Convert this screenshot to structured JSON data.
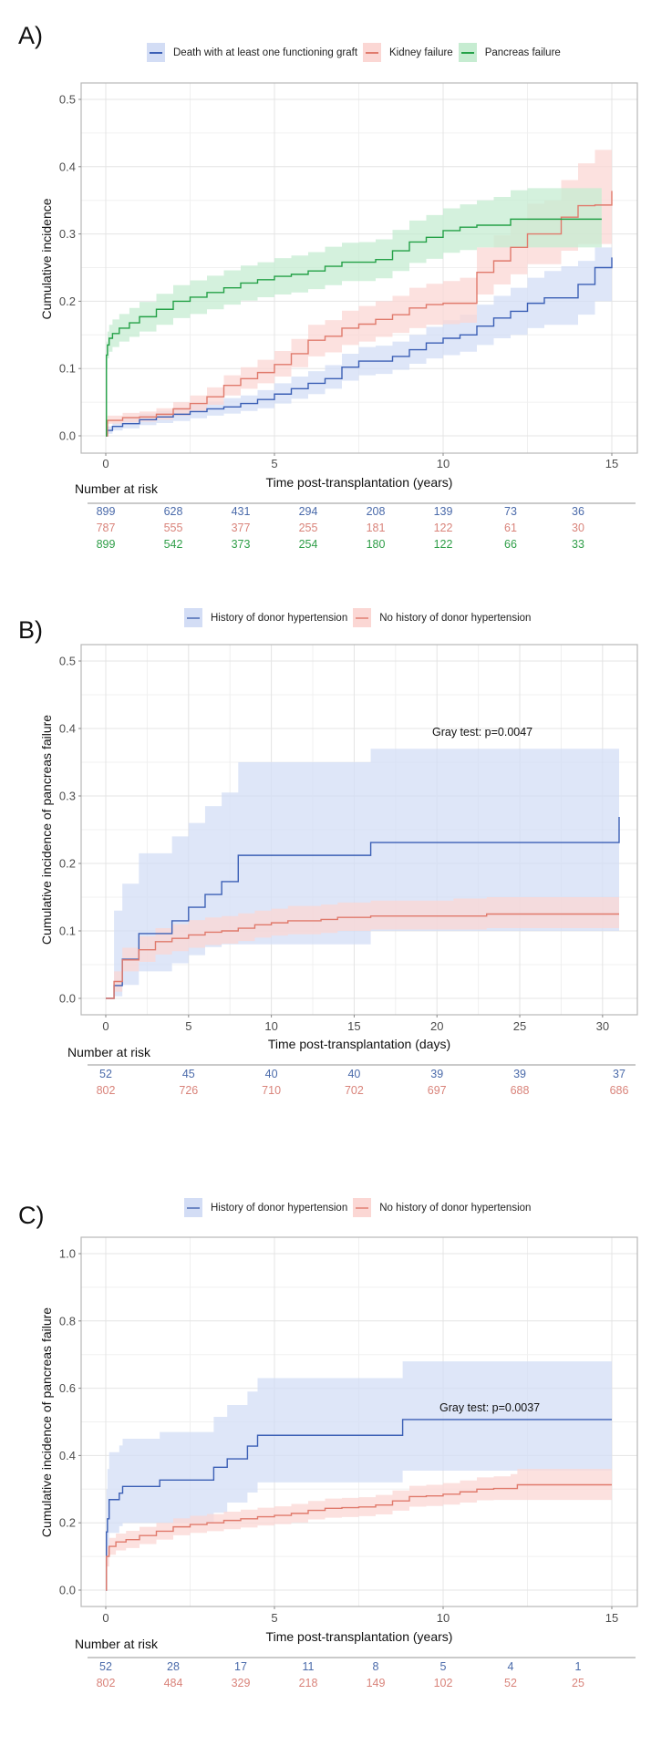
{
  "figure": {
    "panels": [
      {
        "label": "A)"
      },
      {
        "label": "B)"
      },
      {
        "label": "C)"
      }
    ]
  },
  "colors": {
    "blue_line": "#3b5fb5",
    "blue_fill": "#d3ddf5",
    "red_line": "#e07a6c",
    "red_fill": "#fbd7d4",
    "green_line": "#24a147",
    "green_fill": "#c6ecd1",
    "blue_text": "#4a6aaa",
    "red_text": "#d9837a",
    "green_text": "#2f9e48"
  },
  "chart_data": [
    {
      "type": "line",
      "subtype": "cumulative-incidence-step",
      "panel": "A)",
      "title": "",
      "xlabel": "Time post-transplantation (years)",
      "ylabel": "Cumulative incidence",
      "xlim": [
        0,
        15
      ],
      "ylim": [
        0,
        0.5
      ],
      "xticks": [
        0,
        5,
        10,
        15
      ],
      "yticks": [
        "0.0",
        "0.1",
        "0.2",
        "0.3",
        "0.4",
        "0.5"
      ],
      "grid": true,
      "legend_position": "top",
      "series": [
        {
          "name": "Death with at least one functioning graft",
          "color": "blue",
          "x": [
            0,
            0.05,
            0.2,
            0.5,
            1,
            1.5,
            2,
            2.5,
            3,
            3.5,
            4,
            4.5,
            5,
            5.5,
            6,
            6.5,
            7,
            7.5,
            8,
            8.5,
            9,
            9.5,
            10,
            10.5,
            11,
            11.5,
            12,
            12.5,
            13,
            13.5,
            14,
            14.5,
            15
          ],
          "y": [
            0,
            0.008,
            0.014,
            0.018,
            0.024,
            0.028,
            0.032,
            0.036,
            0.04,
            0.043,
            0.048,
            0.054,
            0.062,
            0.07,
            0.078,
            0.085,
            0.102,
            0.111,
            0.111,
            0.118,
            0.128,
            0.138,
            0.145,
            0.15,
            0.163,
            0.175,
            0.185,
            0.197,
            0.205,
            0.205,
            0.225,
            0.25,
            0.265
          ],
          "ci_lower": [
            0,
            0.003,
            0.008,
            0.011,
            0.016,
            0.019,
            0.022,
            0.026,
            0.03,
            0.033,
            0.037,
            0.041,
            0.048,
            0.055,
            0.062,
            0.07,
            0.082,
            0.09,
            0.092,
            0.098,
            0.107,
            0.115,
            0.12,
            0.125,
            0.135,
            0.145,
            0.15,
            0.16,
            0.165,
            0.165,
            0.18,
            0.2,
            0.2
          ],
          "ci_upper": [
            0,
            0.014,
            0.02,
            0.026,
            0.033,
            0.037,
            0.042,
            0.047,
            0.051,
            0.056,
            0.06,
            0.068,
            0.078,
            0.088,
            0.096,
            0.105,
            0.122,
            0.132,
            0.134,
            0.14,
            0.15,
            0.162,
            0.172,
            0.18,
            0.195,
            0.208,
            0.22,
            0.235,
            0.245,
            0.252,
            0.26,
            0.28,
            0.285
          ]
        },
        {
          "name": "Kidney failure",
          "color": "red",
          "x": [
            0,
            0.05,
            0.5,
            1,
            1.5,
            2,
            2.5,
            3,
            3.5,
            4,
            4.5,
            5,
            5.5,
            6,
            6.5,
            7,
            7.5,
            8,
            8.5,
            9,
            9.5,
            10,
            10.5,
            11,
            11.5,
            12,
            12.5,
            13,
            13.5,
            14,
            14.5,
            15
          ],
          "y": [
            0,
            0.023,
            0.027,
            0.028,
            0.032,
            0.04,
            0.048,
            0.058,
            0.075,
            0.085,
            0.094,
            0.106,
            0.122,
            0.142,
            0.148,
            0.16,
            0.166,
            0.173,
            0.18,
            0.19,
            0.195,
            0.197,
            0.197,
            0.243,
            0.26,
            0.28,
            0.3,
            0.3,
            0.325,
            0.342,
            0.343,
            0.364
          ],
          "ci_lower": [
            0,
            0.018,
            0.02,
            0.021,
            0.024,
            0.03,
            0.037,
            0.046,
            0.06,
            0.07,
            0.078,
            0.088,
            0.102,
            0.118,
            0.124,
            0.135,
            0.14,
            0.147,
            0.153,
            0.16,
            0.165,
            0.166,
            0.168,
            0.21,
            0.225,
            0.24,
            0.255,
            0.255,
            0.275,
            0.285,
            0.285,
            0.29
          ],
          "ci_upper": [
            0,
            0.03,
            0.034,
            0.036,
            0.041,
            0.05,
            0.06,
            0.072,
            0.09,
            0.102,
            0.113,
            0.126,
            0.144,
            0.165,
            0.172,
            0.186,
            0.193,
            0.2,
            0.208,
            0.22,
            0.226,
            0.23,
            0.235,
            0.28,
            0.298,
            0.32,
            0.345,
            0.35,
            0.38,
            0.405,
            0.425,
            0.46
          ]
        },
        {
          "name": "Pancreas failure",
          "color": "green",
          "x": [
            0,
            0.02,
            0.05,
            0.1,
            0.2,
            0.4,
            0.7,
            1,
            1.5,
            2,
            2.5,
            3,
            3.5,
            4,
            4.5,
            5,
            5.5,
            6,
            6.5,
            7,
            7.5,
            8,
            8.5,
            9,
            9.5,
            10,
            10.5,
            11,
            11.5,
            12,
            12.5,
            13,
            13.5,
            14,
            14.7
          ],
          "y": [
            0,
            0.12,
            0.135,
            0.145,
            0.152,
            0.16,
            0.168,
            0.177,
            0.188,
            0.2,
            0.206,
            0.213,
            0.22,
            0.227,
            0.232,
            0.237,
            0.24,
            0.245,
            0.252,
            0.258,
            0.258,
            0.262,
            0.275,
            0.288,
            0.295,
            0.305,
            0.31,
            0.313,
            0.313,
            0.322,
            0.322,
            0.322,
            0.322,
            0.322,
            0.322
          ],
          "ci_lower": [
            0,
            0.1,
            0.115,
            0.125,
            0.132,
            0.14,
            0.147,
            0.155,
            0.165,
            0.175,
            0.181,
            0.188,
            0.195,
            0.201,
            0.206,
            0.21,
            0.213,
            0.218,
            0.224,
            0.23,
            0.23,
            0.234,
            0.245,
            0.257,
            0.263,
            0.272,
            0.276,
            0.28,
            0.28,
            0.28,
            0.28,
            0.28,
            0.28,
            0.28,
            0.28
          ],
          "ci_upper": [
            0,
            0.14,
            0.155,
            0.165,
            0.173,
            0.181,
            0.19,
            0.199,
            0.211,
            0.224,
            0.231,
            0.238,
            0.246,
            0.253,
            0.258,
            0.264,
            0.268,
            0.273,
            0.281,
            0.287,
            0.288,
            0.292,
            0.306,
            0.32,
            0.328,
            0.338,
            0.344,
            0.35,
            0.355,
            0.365,
            0.368,
            0.368,
            0.368,
            0.368,
            0.368
          ]
        }
      ],
      "number_at_risk": {
        "title": "Number at risk",
        "times": [
          0,
          2,
          4,
          6,
          8,
          10,
          12,
          14
        ],
        "rows": [
          {
            "color": "blue",
            "values": [
              "899",
              "628",
              "431",
              "294",
              "208",
              "139",
              "73",
              "36"
            ]
          },
          {
            "color": "red",
            "values": [
              "787",
              "555",
              "377",
              "255",
              "181",
              "122",
              "61",
              "30"
            ]
          },
          {
            "color": "green",
            "values": [
              "899",
              "542",
              "373",
              "254",
              "180",
              "122",
              "66",
              "33"
            ]
          }
        ]
      }
    },
    {
      "type": "line",
      "subtype": "cumulative-incidence-step",
      "panel": "B)",
      "title": "",
      "xlabel": "Time post-transplantation (days)",
      "ylabel": "Cumulative incidence of pancreas failure",
      "xlim": [
        0,
        31
      ],
      "ylim": [
        0,
        0.5
      ],
      "xticks": [
        0,
        5,
        10,
        15,
        20,
        25,
        30
      ],
      "yticks": [
        "0.0",
        "0.1",
        "0.2",
        "0.3",
        "0.4",
        "0.5"
      ],
      "grid": true,
      "legend_position": "top",
      "annotation": "Gray test: p=0.0047",
      "series": [
        {
          "name": "History of donor hypertension",
          "color": "blue",
          "x": [
            0,
            0.5,
            1,
            2,
            4,
            5,
            6,
            7,
            8,
            16,
            31,
            31
          ],
          "y": [
            0,
            0.019,
            0.058,
            0.096,
            0.115,
            0.135,
            0.154,
            0.173,
            0.212,
            0.231,
            0.231,
            0.269
          ],
          "ci_lower": [
            0,
            0.003,
            0.02,
            0.04,
            0.052,
            0.064,
            0.076,
            0.08,
            0.08,
            0.1,
            0.17,
            0.17
          ],
          "ci_upper": [
            0,
            0.13,
            0.17,
            0.215,
            0.24,
            0.26,
            0.285,
            0.305,
            0.35,
            0.37,
            0.41,
            0.41
          ]
        },
        {
          "name": "No history of donor hypertension",
          "color": "red",
          "x": [
            0,
            0.5,
            1,
            2,
            3,
            4,
            5,
            6,
            7,
            8,
            9,
            10,
            11,
            13,
            14,
            16,
            21,
            23,
            31
          ],
          "y": [
            0,
            0.025,
            0.057,
            0.072,
            0.084,
            0.089,
            0.094,
            0.098,
            0.1,
            0.104,
            0.109,
            0.112,
            0.115,
            0.117,
            0.12,
            0.122,
            0.122,
            0.125,
            0.125
          ],
          "ci_lower": [
            0,
            0.01,
            0.04,
            0.054,
            0.065,
            0.07,
            0.075,
            0.079,
            0.081,
            0.085,
            0.09,
            0.093,
            0.095,
            0.097,
            0.1,
            0.102,
            0.102,
            0.104,
            0.104
          ],
          "ci_upper": [
            0,
            0.04,
            0.075,
            0.092,
            0.104,
            0.11,
            0.116,
            0.12,
            0.122,
            0.126,
            0.13,
            0.133,
            0.137,
            0.139,
            0.142,
            0.145,
            0.148,
            0.15,
            0.15
          ]
        }
      ],
      "number_at_risk": {
        "title": "Number at risk",
        "times": [
          0,
          5,
          10,
          15,
          20,
          25,
          31
        ],
        "rows": [
          {
            "color": "blue",
            "values": [
              "52",
              "45",
              "40",
              "40",
              "39",
              "39",
              "37"
            ]
          },
          {
            "color": "red",
            "values": [
              "802",
              "726",
              "710",
              "702",
              "697",
              "688",
              "686"
            ]
          }
        ]
      }
    },
    {
      "type": "line",
      "subtype": "cumulative-incidence-step",
      "panel": "C)",
      "title": "",
      "xlabel": "Time post-transplantation (years)",
      "ylabel": "Cumulative incidence of pancreas failure",
      "xlim": [
        0,
        15
      ],
      "ylim": [
        0,
        1.0
      ],
      "xticks": [
        0,
        5,
        10,
        15
      ],
      "yticks": [
        "0.0",
        "0.2",
        "0.4",
        "0.6",
        "0.8",
        "1.0"
      ],
      "grid": true,
      "legend_position": "top",
      "annotation": "Gray test: p=0.0037",
      "series": [
        {
          "name": "History of donor hypertension",
          "color": "blue",
          "x": [
            0,
            0.02,
            0.05,
            0.1,
            0.4,
            0.5,
            1.6,
            3.2,
            3.6,
            4.2,
            4.5,
            8.8,
            15
          ],
          "y": [
            0,
            0.173,
            0.212,
            0.269,
            0.288,
            0.308,
            0.327,
            0.365,
            0.39,
            0.428,
            0.46,
            0.507,
            0.507
          ],
          "ci_lower": [
            0,
            0.1,
            0.13,
            0.17,
            0.19,
            0.2,
            0.2,
            0.23,
            0.26,
            0.29,
            0.32,
            0.355,
            0.355
          ],
          "ci_upper": [
            0,
            0.3,
            0.36,
            0.41,
            0.43,
            0.45,
            0.47,
            0.515,
            0.55,
            0.59,
            0.63,
            0.68,
            0.68
          ]
        },
        {
          "name": "No history of donor hypertension",
          "color": "red",
          "x": [
            0,
            0.02,
            0.1,
            0.3,
            0.6,
            1,
            1.5,
            2,
            2.5,
            3,
            3.5,
            4,
            4.5,
            5,
            5.5,
            6,
            6.5,
            7,
            7.5,
            8,
            8.5,
            9,
            9.5,
            10,
            10.5,
            11,
            11.5,
            12,
            12.2,
            15
          ],
          "y": [
            0,
            0.1,
            0.13,
            0.143,
            0.15,
            0.162,
            0.175,
            0.188,
            0.195,
            0.2,
            0.207,
            0.212,
            0.218,
            0.222,
            0.228,
            0.237,
            0.243,
            0.245,
            0.247,
            0.253,
            0.265,
            0.278,
            0.28,
            0.285,
            0.292,
            0.3,
            0.302,
            0.302,
            0.313,
            0.313
          ],
          "ci_lower": [
            0,
            0.07,
            0.105,
            0.118,
            0.125,
            0.137,
            0.15,
            0.163,
            0.17,
            0.175,
            0.181,
            0.186,
            0.192,
            0.196,
            0.201,
            0.21,
            0.215,
            0.217,
            0.22,
            0.225,
            0.236,
            0.248,
            0.25,
            0.254,
            0.26,
            0.267,
            0.268,
            0.268,
            0.268,
            0.268
          ],
          "ci_upper": [
            0,
            0.13,
            0.155,
            0.168,
            0.176,
            0.188,
            0.2,
            0.213,
            0.221,
            0.226,
            0.233,
            0.239,
            0.245,
            0.249,
            0.256,
            0.265,
            0.272,
            0.274,
            0.276,
            0.283,
            0.296,
            0.31,
            0.313,
            0.318,
            0.326,
            0.335,
            0.338,
            0.345,
            0.36,
            0.36
          ]
        }
      ],
      "number_at_risk": {
        "title": "Number at risk",
        "times": [
          0,
          2,
          4,
          6,
          8,
          10,
          12,
          14
        ],
        "rows": [
          {
            "color": "blue",
            "values": [
              "52",
              "28",
              "17",
              "11",
              "8",
              "5",
              "4",
              "1"
            ]
          },
          {
            "color": "red",
            "values": [
              "802",
              "484",
              "329",
              "218",
              "149",
              "102",
              "52",
              "25"
            ]
          }
        ]
      }
    }
  ]
}
